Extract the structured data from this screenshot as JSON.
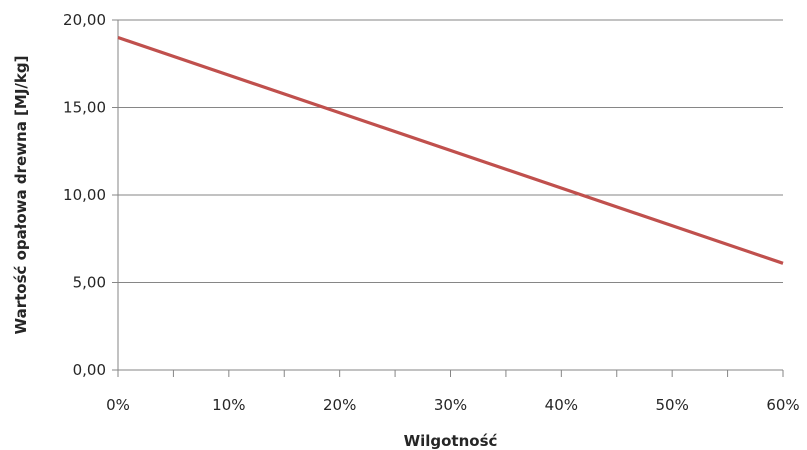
{
  "chart_data": {
    "type": "line",
    "title": "",
    "xlabel": "Wilgotność",
    "ylabel": "Wartość opałowa drewna [MJ/kg]",
    "x_ticks": [
      "0%",
      "10%",
      "20%",
      "30%",
      "40%",
      "50%",
      "60%"
    ],
    "y_ticks": [
      "0,00",
      "5,00",
      "10,00",
      "15,00",
      "20,00"
    ],
    "xlim": [
      0,
      60
    ],
    "ylim": [
      0,
      20
    ],
    "x_unit": "%",
    "grid": "horizontal",
    "legend": "none",
    "series": [
      {
        "color": "#c0504d",
        "x": [
          0,
          60
        ],
        "y": [
          19.0,
          6.1
        ]
      }
    ]
  }
}
